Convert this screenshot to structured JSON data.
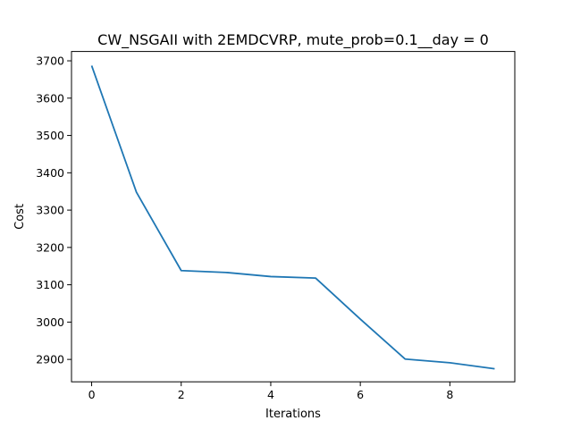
{
  "chart_data": {
    "type": "line",
    "title": "CW_NSGAII with 2EMDCVRP, mute_prob=0.1__day = 0",
    "xlabel": "Iterations",
    "ylabel": "Cost",
    "xlim": [
      -0.45,
      9.45
    ],
    "ylim": [
      2840,
      3725
    ],
    "xticks": [
      0,
      2,
      4,
      6,
      8
    ],
    "yticks": [
      2900,
      3000,
      3100,
      3200,
      3300,
      3400,
      3500,
      3600,
      3700
    ],
    "grid": false,
    "series": [
      {
        "color": "#1f77b4",
        "x": [
          0,
          1,
          2,
          3,
          4,
          5,
          6,
          7,
          8,
          9
        ],
        "y": [
          3687,
          3348,
          3138,
          3133,
          3122,
          3118,
          3008,
          2901,
          2891,
          2875
        ]
      }
    ]
  }
}
